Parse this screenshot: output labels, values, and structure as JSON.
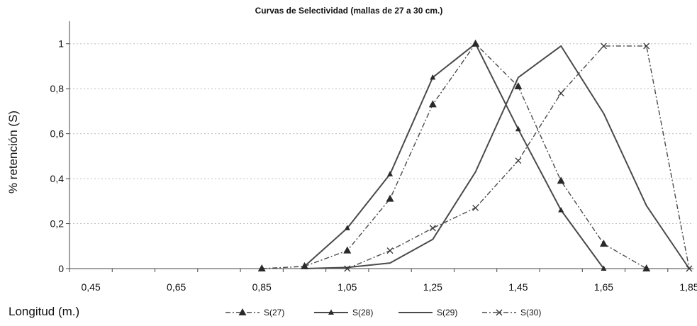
{
  "chart_data": {
    "type": "line",
    "title": "Curvas de Selectividad (mallas de 27 a 30 cm.)",
    "xlabel": "Longitud (m.)",
    "ylabel": "% retención (S)",
    "x": [
      0.85,
      0.95,
      1.05,
      1.15,
      1.25,
      1.35,
      1.45,
      1.55,
      1.65,
      1.75,
      1.85
    ],
    "x_ticks": [
      "0,45",
      "0,65",
      "0,85",
      "1,05",
      "1,25",
      "1,45",
      "1,65",
      "1,85"
    ],
    "x_tick_values": [
      0.45,
      0.65,
      0.85,
      1.05,
      1.25,
      1.45,
      1.65,
      1.85
    ],
    "y_ticks": [
      "0",
      "0,2",
      "0,4",
      "0,6",
      "0,8",
      "1"
    ],
    "y_tick_values": [
      0,
      0.2,
      0.4,
      0.6,
      0.8,
      1
    ],
    "xlim": [
      0.4,
      1.86
    ],
    "ylim": [
      0,
      1.1
    ],
    "grid": "horizontal dotted",
    "legend_position": "bottom",
    "series": [
      {
        "name": "S(27)",
        "style": "dash-dot",
        "marker": "triangle",
        "x": [
          0.85,
          0.95,
          1.05,
          1.15,
          1.25,
          1.35,
          1.45,
          1.55,
          1.65,
          1.75
        ],
        "values": [
          0.0,
          0.01,
          0.08,
          0.31,
          0.73,
          1.0,
          0.81,
          0.39,
          0.11,
          0.0
        ]
      },
      {
        "name": "S(28)",
        "style": "solid",
        "marker": "small-triangle",
        "x": [
          0.95,
          1.05,
          1.15,
          1.25,
          1.35,
          1.45,
          1.55,
          1.65
        ],
        "values": [
          0.01,
          0.18,
          0.42,
          0.85,
          1.0,
          0.62,
          0.26,
          0.0
        ]
      },
      {
        "name": "S(29)",
        "style": "solid",
        "marker": "none",
        "x": [
          0.95,
          1.05,
          1.15,
          1.25,
          1.35,
          1.45,
          1.55,
          1.65,
          1.75,
          1.85
        ],
        "values": [
          0.0,
          0.005,
          0.025,
          0.13,
          0.43,
          0.85,
          0.99,
          0.69,
          0.28,
          0.0
        ]
      },
      {
        "name": "S(30)",
        "style": "dash-dot",
        "marker": "x",
        "x": [
          1.05,
          1.15,
          1.25,
          1.35,
          1.45,
          1.55,
          1.65,
          1.75,
          1.85
        ],
        "values": [
          0.0,
          0.08,
          0.18,
          0.27,
          0.48,
          0.78,
          0.99,
          0.99,
          0.0
        ]
      }
    ]
  }
}
